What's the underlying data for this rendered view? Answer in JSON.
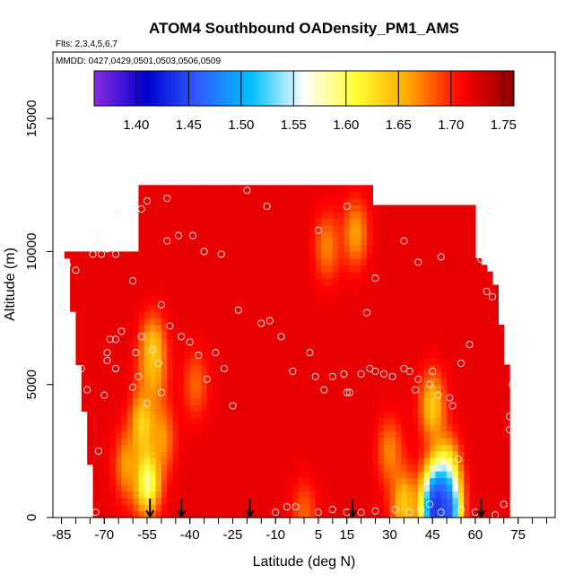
{
  "chart_data": {
    "type": "heatmap",
    "title": "ATOM4 Southbound OADensity_PM1_AMS",
    "flights_label": "Flts: 2,3,4,5,6,7",
    "dates_label": "MMDD: 0427,0429,0501,0503,0506,0509",
    "xlabel": "Latitude (deg N)",
    "ylabel": "Altitude (m)",
    "xlim": [
      -88,
      88
    ],
    "ylim": [
      0,
      17500
    ],
    "x_ticks": [
      -85,
      -70,
      -55,
      -40,
      -25,
      -10,
      5,
      15,
      30,
      45,
      60,
      75
    ],
    "x_tick_labels": [
      "-85",
      "-70",
      "-55",
      "-40",
      "-25",
      "-10",
      "5",
      "15",
      "30",
      "45",
      "60",
      "75"
    ],
    "x_minor_step": 5,
    "y_ticks": [
      0,
      5000,
      10000,
      15000
    ],
    "y_tick_labels": [
      "0",
      "5000",
      "10000",
      "15000"
    ],
    "colorbar": {
      "range": [
        1.36,
        1.76
      ],
      "ticks": [
        1.4,
        1.45,
        1.5,
        1.55,
        1.6,
        1.65,
        1.7,
        1.75
      ],
      "tick_labels": [
        "1.40",
        "1.45",
        "1.50",
        "1.55",
        "1.60",
        "1.65",
        "1.70",
        "1.75"
      ],
      "colors": [
        "#8a2be2",
        "#0000cd",
        "#2f5fff",
        "#00bfff",
        "#ffffff",
        "#ffff30",
        "#ffa500",
        "#ff0000",
        "#8b0000"
      ]
    },
    "background_value": 1.72,
    "features": [
      {
        "lat": -55,
        "alt": 1500,
        "value": 1.57
      },
      {
        "lat": -56,
        "alt": 3500,
        "value": 1.62
      },
      {
        "lat": -62,
        "alt": 2000,
        "value": 1.66
      },
      {
        "lat": -50,
        "alt": 3000,
        "value": 1.66
      },
      {
        "lat": -53,
        "alt": 5200,
        "value": 1.67
      },
      {
        "lat": -53,
        "alt": 6300,
        "value": 1.64
      },
      {
        "lat": -38,
        "alt": 5000,
        "value": 1.68
      },
      {
        "lat": 8,
        "alt": 10200,
        "value": 1.67
      },
      {
        "lat": 18,
        "alt": 10700,
        "value": 1.66
      },
      {
        "lat": 30,
        "alt": 2500,
        "value": 1.67
      },
      {
        "lat": 35,
        "alt": 500,
        "value": 1.64
      },
      {
        "lat": 45,
        "alt": 4200,
        "value": 1.64
      },
      {
        "lat": 50,
        "alt": 1700,
        "value": 1.62
      },
      {
        "lat": 46,
        "alt": 600,
        "value": 1.52
      },
      {
        "lat": 47,
        "alt": 250,
        "value": 1.42
      },
      {
        "lat": 50,
        "alt": 250,
        "value": 1.45
      },
      {
        "lat": 0,
        "alt": 100,
        "value": 1.68
      }
    ],
    "arrows_lat": [
      -54,
      -43,
      -19,
      17,
      62
    ],
    "observations": [
      [
        -87,
        6300
      ],
      [
        -85,
        9500
      ],
      [
        -83,
        9500
      ],
      [
        -78,
        5600
      ],
      [
        -76,
        4800
      ],
      [
        -72,
        2500
      ],
      [
        -70,
        4600
      ],
      [
        -73,
        200
      ],
      [
        -69,
        6200
      ],
      [
        -69,
        5900
      ],
      [
        -68,
        6700
      ],
      [
        -66,
        6700
      ],
      [
        -66,
        5600
      ],
      [
        -64,
        7000
      ],
      [
        -66,
        5600
      ],
      [
        -60,
        4900
      ],
      [
        -59,
        6200
      ],
      [
        -58,
        5300
      ],
      [
        -57,
        6800
      ],
      [
        -55,
        4300
      ],
      [
        -53,
        6300
      ],
      [
        -51,
        5800
      ],
      [
        -50,
        4700
      ],
      [
        -47,
        7200
      ],
      [
        -43,
        6800
      ],
      [
        -40,
        6600
      ],
      [
        -37,
        6100
      ],
      [
        -34,
        5200
      ],
      [
        -31,
        6200
      ],
      [
        -28,
        5600
      ],
      [
        -25,
        4200
      ],
      [
        -23,
        7800
      ],
      [
        -15,
        7300
      ],
      [
        -12,
        7400
      ],
      [
        -8,
        6800
      ],
      [
        -4,
        5500
      ],
      [
        2,
        6200
      ],
      [
        4,
        5300
      ],
      [
        7,
        4800
      ],
      [
        10,
        5300
      ],
      [
        14,
        5400
      ],
      [
        15,
        4700
      ],
      [
        16,
        4700
      ],
      [
        20,
        5400
      ],
      [
        23,
        5600
      ],
      [
        25,
        5500
      ],
      [
        28,
        5400
      ],
      [
        31,
        5300
      ],
      [
        35,
        5600
      ],
      [
        37,
        5500
      ],
      [
        39,
        4800
      ],
      [
        40,
        5200
      ],
      [
        44,
        5000
      ],
      [
        47,
        4600
      ],
      [
        51,
        4500
      ],
      [
        55,
        5800
      ],
      [
        58,
        6500
      ],
      [
        62,
        9700
      ],
      [
        64,
        8500
      ],
      [
        66,
        8300
      ],
      [
        48,
        9800
      ],
      [
        40,
        9600
      ],
      [
        35,
        10400
      ],
      [
        25,
        9000
      ],
      [
        22,
        7700
      ],
      [
        15,
        11700
      ],
      [
        5,
        10800
      ],
      [
        -13,
        11700
      ],
      [
        -20,
        12300
      ],
      [
        -35,
        10000
      ],
      [
        -48,
        10400
      ],
      [
        -48,
        12000
      ],
      [
        -57,
        11600
      ],
      [
        -65,
        11400
      ],
      [
        -71,
        10300
      ],
      [
        -71,
        9900
      ],
      [
        -69,
        10100
      ],
      [
        -66,
        9900
      ],
      [
        -60,
        8900
      ],
      [
        -55,
        11900
      ],
      [
        -50,
        8000
      ],
      [
        -44,
        10600
      ],
      [
        -39,
        10600
      ],
      [
        -29,
        9900
      ],
      [
        -80,
        9300
      ],
      [
        -74,
        9900
      ],
      [
        -73,
        10700
      ],
      [
        -10,
        200
      ],
      [
        -6,
        400
      ],
      [
        -3,
        400
      ],
      [
        5,
        200
      ],
      [
        10,
        300
      ],
      [
        15,
        200
      ],
      [
        20,
        200
      ],
      [
        25,
        250
      ],
      [
        32,
        300
      ],
      [
        37,
        200
      ],
      [
        41,
        300
      ],
      [
        44,
        500
      ],
      [
        48,
        200
      ],
      [
        55,
        300
      ],
      [
        60,
        200
      ],
      [
        67,
        100
      ],
      [
        70,
        500
      ],
      [
        72,
        3300
      ],
      [
        72,
        3800
      ],
      [
        73,
        5000
      ],
      [
        65,
        11500
      ],
      [
        45,
        5500
      ],
      [
        52,
        4200
      ],
      [
        54,
        2200
      ]
    ]
  }
}
